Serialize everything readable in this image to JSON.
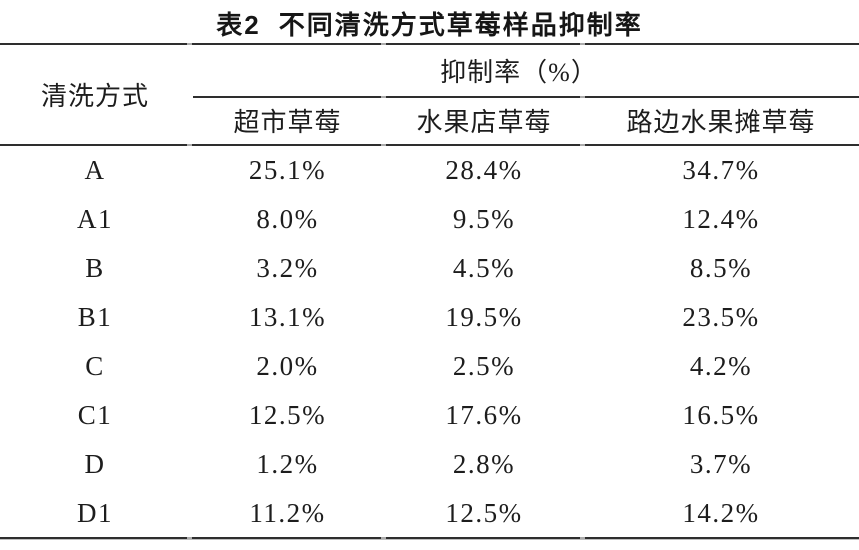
{
  "title": {
    "label": "表2",
    "text": "不同清洗方式草莓样品抑制率"
  },
  "table": {
    "method_header": "清洗方式",
    "span_header": "抑制率（%）",
    "subheaders": [
      "超市草莓",
      "水果店草莓",
      "路边水果摊草莓"
    ],
    "rows": [
      {
        "method": "A",
        "values": [
          "25.1%",
          "28.4%",
          "34.7%"
        ]
      },
      {
        "method": "A1",
        "values": [
          "8.0%",
          "9.5%",
          "12.4%"
        ]
      },
      {
        "method": "B",
        "values": [
          "3.2%",
          "4.5%",
          "8.5%"
        ]
      },
      {
        "method": "B1",
        "values": [
          "13.1%",
          "19.5%",
          "23.5%"
        ]
      },
      {
        "method": "C",
        "values": [
          "2.0%",
          "2.5%",
          "4.2%"
        ]
      },
      {
        "method": "C1",
        "values": [
          "12.5%",
          "17.6%",
          "16.5%"
        ]
      },
      {
        "method": "D",
        "values": [
          "1.2%",
          "2.8%",
          "3.7%"
        ]
      },
      {
        "method": "D1",
        "values": [
          "11.2%",
          "12.5%",
          "14.2%"
        ]
      }
    ]
  },
  "colors": {
    "background": "#ffffff",
    "text": "#1d1d1d",
    "rule": "#2e2e2e",
    "divider_mark": "#ababab"
  }
}
